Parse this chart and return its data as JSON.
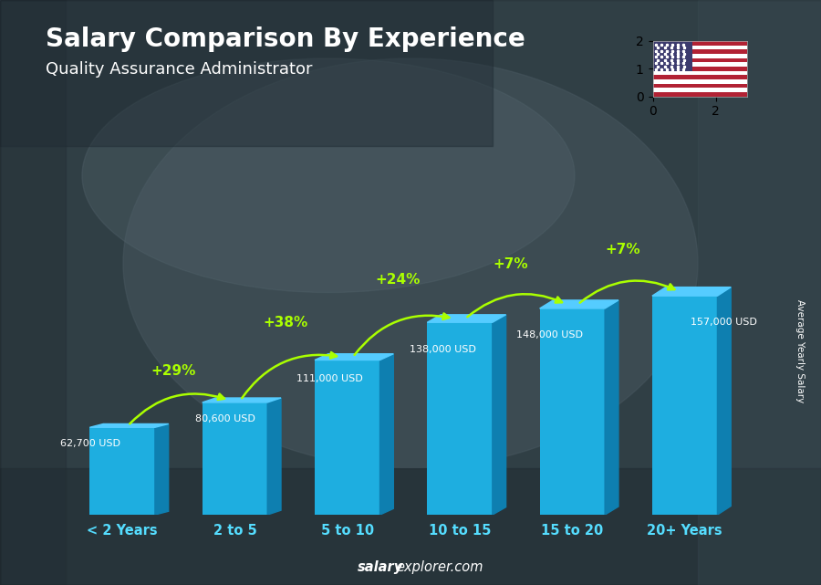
{
  "title": "Salary Comparison By Experience",
  "subtitle": "Quality Assurance Administrator",
  "categories": [
    "< 2 Years",
    "2 to 5",
    "5 to 10",
    "10 to 15",
    "15 to 20",
    "20+ Years"
  ],
  "values": [
    62700,
    80600,
    111000,
    138000,
    148000,
    157000
  ],
  "value_labels": [
    "62,700 USD",
    "80,600 USD",
    "111,000 USD",
    "138,000 USD",
    "148,000 USD",
    "157,000 USD"
  ],
  "pct_changes": [
    "+29%",
    "+38%",
    "+24%",
    "+7%",
    "+7%"
  ],
  "bar_color_main": "#1EAEE0",
  "bar_color_light": "#55CCFF",
  "bar_color_dark": "#0E7FB0",
  "pct_color": "#AAFF00",
  "value_label_color": "#FFFFFF",
  "title_color": "#FFFFFF",
  "subtitle_color": "#FFFFFF",
  "xlabel_color": "#55DDFF",
  "ylabel_text": "Average Yearly Salary",
  "footer_bold": "salary",
  "footer_normal": "explorer.com",
  "bg_color": "#3a4a52"
}
